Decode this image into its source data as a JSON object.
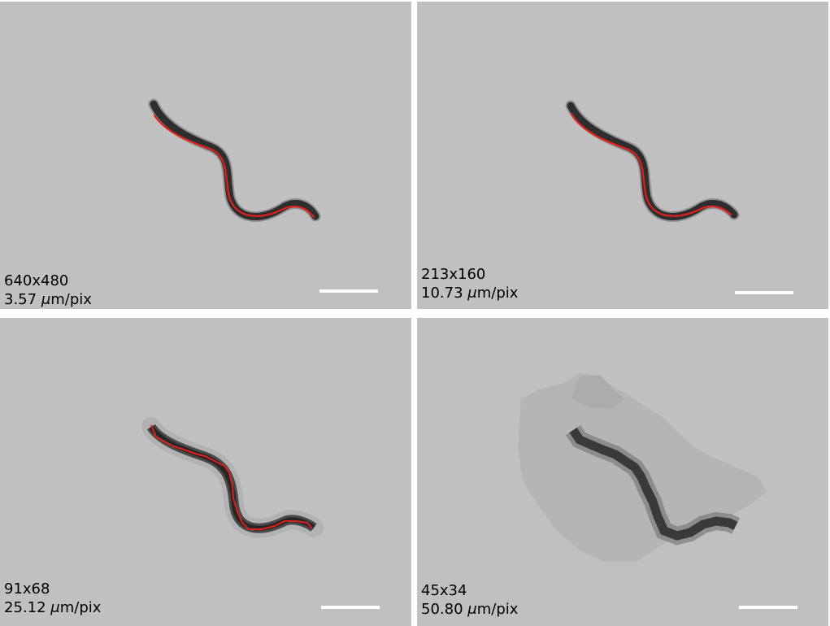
{
  "colors": {
    "background": "#c0c0c0",
    "worm": "#2e2e2e",
    "skeleton": "#e0201b",
    "scalebar": "#ffffff"
  },
  "panels": [
    {
      "resolution": "640x480",
      "scale_value": "3.57",
      "scale_unit": "m/pix",
      "mu": "μ",
      "skeleton_shown": true
    },
    {
      "resolution": "213x160",
      "scale_value": "10.73",
      "scale_unit": "m/pix",
      "mu": "μ",
      "skeleton_shown": true
    },
    {
      "resolution": "91x68",
      "scale_value": "25.12",
      "scale_unit": "m/pix",
      "mu": "μ",
      "skeleton_shown": true
    },
    {
      "resolution": "45x34",
      "scale_value": "50.80",
      "scale_unit": "m/pix",
      "mu": "μ",
      "skeleton_shown": false
    }
  ]
}
